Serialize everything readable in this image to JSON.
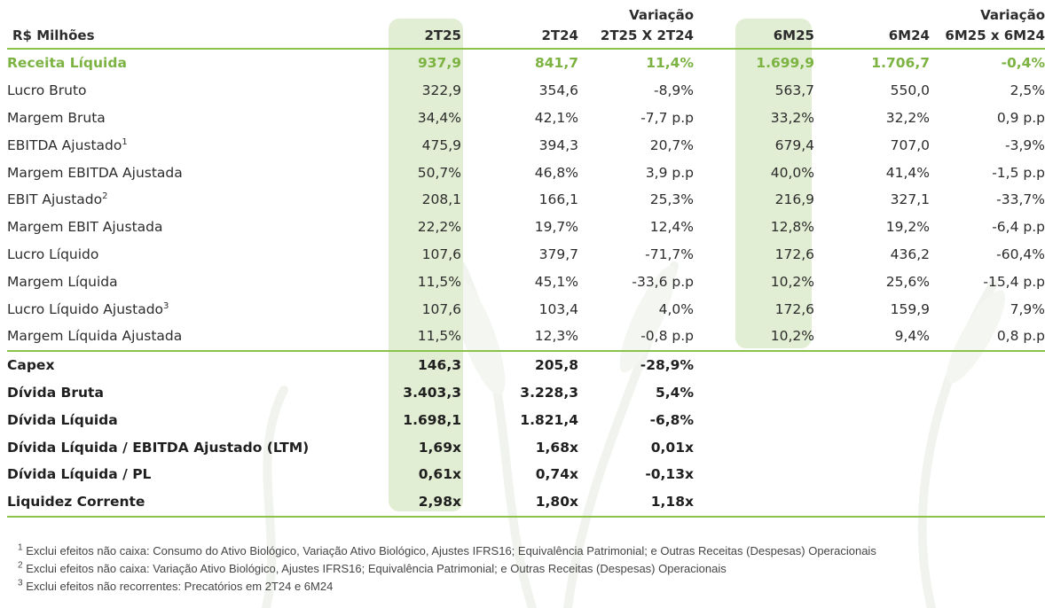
{
  "header": {
    "unit": "R$ Milhões",
    "col_2t25": "2T25",
    "col_2t24": "2T24",
    "var1_line1": "Variação",
    "var1_line2": "2T25 X 2T24",
    "col_6m25": "6M25",
    "col_6m24": "6M24",
    "var2_line1": "Variação",
    "var2_line2": "6M25 x 6M24"
  },
  "rows": [
    {
      "label": "Receita Líquida",
      "sup": "",
      "v2t25": "937,9",
      "v2t24": "841,7",
      "var1": "11,4%",
      "v6m25": "1.699,9",
      "v6m24": "1.706,7",
      "var2": "-0,4%"
    },
    {
      "label": "Lucro Bruto",
      "sup": "",
      "v2t25": "322,9",
      "v2t24": "354,6",
      "var1": "-8,9%",
      "v6m25": "563,7",
      "v6m24": "550,0",
      "var2": "2,5%"
    },
    {
      "label": "Margem Bruta",
      "sup": "",
      "v2t25": "34,4%",
      "v2t24": "42,1%",
      "var1": "-7,7 p.p",
      "v6m25": "33,2%",
      "v6m24": "32,2%",
      "var2": "0,9 p.p"
    },
    {
      "label": "EBITDA Ajustado",
      "sup": "1",
      "v2t25": "475,9",
      "v2t24": "394,3",
      "var1": "20,7%",
      "v6m25": "679,4",
      "v6m24": "707,0",
      "var2": "-3,9%"
    },
    {
      "label": "Margem EBITDA Ajustada",
      "sup": "",
      "v2t25": "50,7%",
      "v2t24": "46,8%",
      "var1": "3,9 p.p",
      "v6m25": "40,0%",
      "v6m24": "41,4%",
      "var2": "-1,5 p.p"
    },
    {
      "label": "EBIT Ajustado",
      "sup": "2",
      "v2t25": "208,1",
      "v2t24": "166,1",
      "var1": "25,3%",
      "v6m25": "216,9",
      "v6m24": "327,1",
      "var2": "-33,7%"
    },
    {
      "label": "Margem EBIT Ajustada",
      "sup": "",
      "v2t25": "22,2%",
      "v2t24": "19,7%",
      "var1": "12,4%",
      "v6m25": "12,8%",
      "v6m24": "19,2%",
      "var2": "-6,4 p.p"
    },
    {
      "label": "Lucro Líquido",
      "sup": "",
      "v2t25": "107,6",
      "v2t24": "379,7",
      "var1": "-71,7%",
      "v6m25": "172,6",
      "v6m24": "436,2",
      "var2": "-60,4%"
    },
    {
      "label": "Margem Líquida",
      "sup": "",
      "v2t25": "11,5%",
      "v2t24": "45,1%",
      "var1": "-33,6 p.p",
      "v6m25": "10,2%",
      "v6m24": "25,6%",
      "var2": "-15,4 p.p"
    },
    {
      "label": "Lucro Líquido Ajustado",
      "sup": "3",
      "v2t25": "107,6",
      "v2t24": "103,4",
      "var1": "4,0%",
      "v6m25": "172,6",
      "v6m24": "159,9",
      "var2": "7,9%"
    },
    {
      "label": "Margem Líquida Ajustada",
      "sup": "",
      "v2t25": "11,5%",
      "v2t24": "12,3%",
      "var1": "-0,8 p.p",
      "v6m25": "10,2%",
      "v6m24": "9,4%",
      "var2": "0,8 p.p"
    }
  ],
  "debt_rows": [
    {
      "label": "Capex",
      "v2t25": "146,3",
      "v2t24": "205,8",
      "var1": "-28,9%"
    },
    {
      "label": "Dívida Bruta",
      "v2t25": "3.403,3",
      "v2t24": "3.228,3",
      "var1": "5,4%"
    },
    {
      "label": "Dívida Líquida",
      "v2t25": "1.698,1",
      "v2t24": "1.821,4",
      "var1": "-6,8%"
    },
    {
      "label": "Dívida Líquida / EBITDA Ajustado (LTM)",
      "v2t25": "1,69x",
      "v2t24": "1,68x",
      "var1": "0,01x"
    },
    {
      "label": "Dívida Líquida / PL",
      "v2t25": "0,61x",
      "v2t24": "0,74x",
      "var1": "-0,13x"
    },
    {
      "label": "Liquidez Corrente",
      "v2t25": "2,98x",
      "v2t24": "1,80x",
      "var1": "1,18x"
    }
  ],
  "footnotes": [
    {
      "mark": "1",
      "text": "Exclui efeitos não caixa: Consumo do Ativo Biológico, Variação Ativo Biológico, Ajustes IFRS16; Equivalência Patrimonial; e Outras Receitas (Despesas) Operacionais"
    },
    {
      "mark": "2",
      "text": "Exclui efeitos não caixa: Variação Ativo Biológico, Ajustes IFRS16; Equivalência Patrimonial; e Outras Receitas (Despesas) Operacionais"
    },
    {
      "mark": "3",
      "text": "Exclui efeitos não recorrentes: Precatórios em 2T24 e 6M24"
    }
  ],
  "colors": {
    "accent_green": "#7cb342",
    "rule_green": "#8bc34a",
    "highlight_fill": "#e2eed3"
  }
}
